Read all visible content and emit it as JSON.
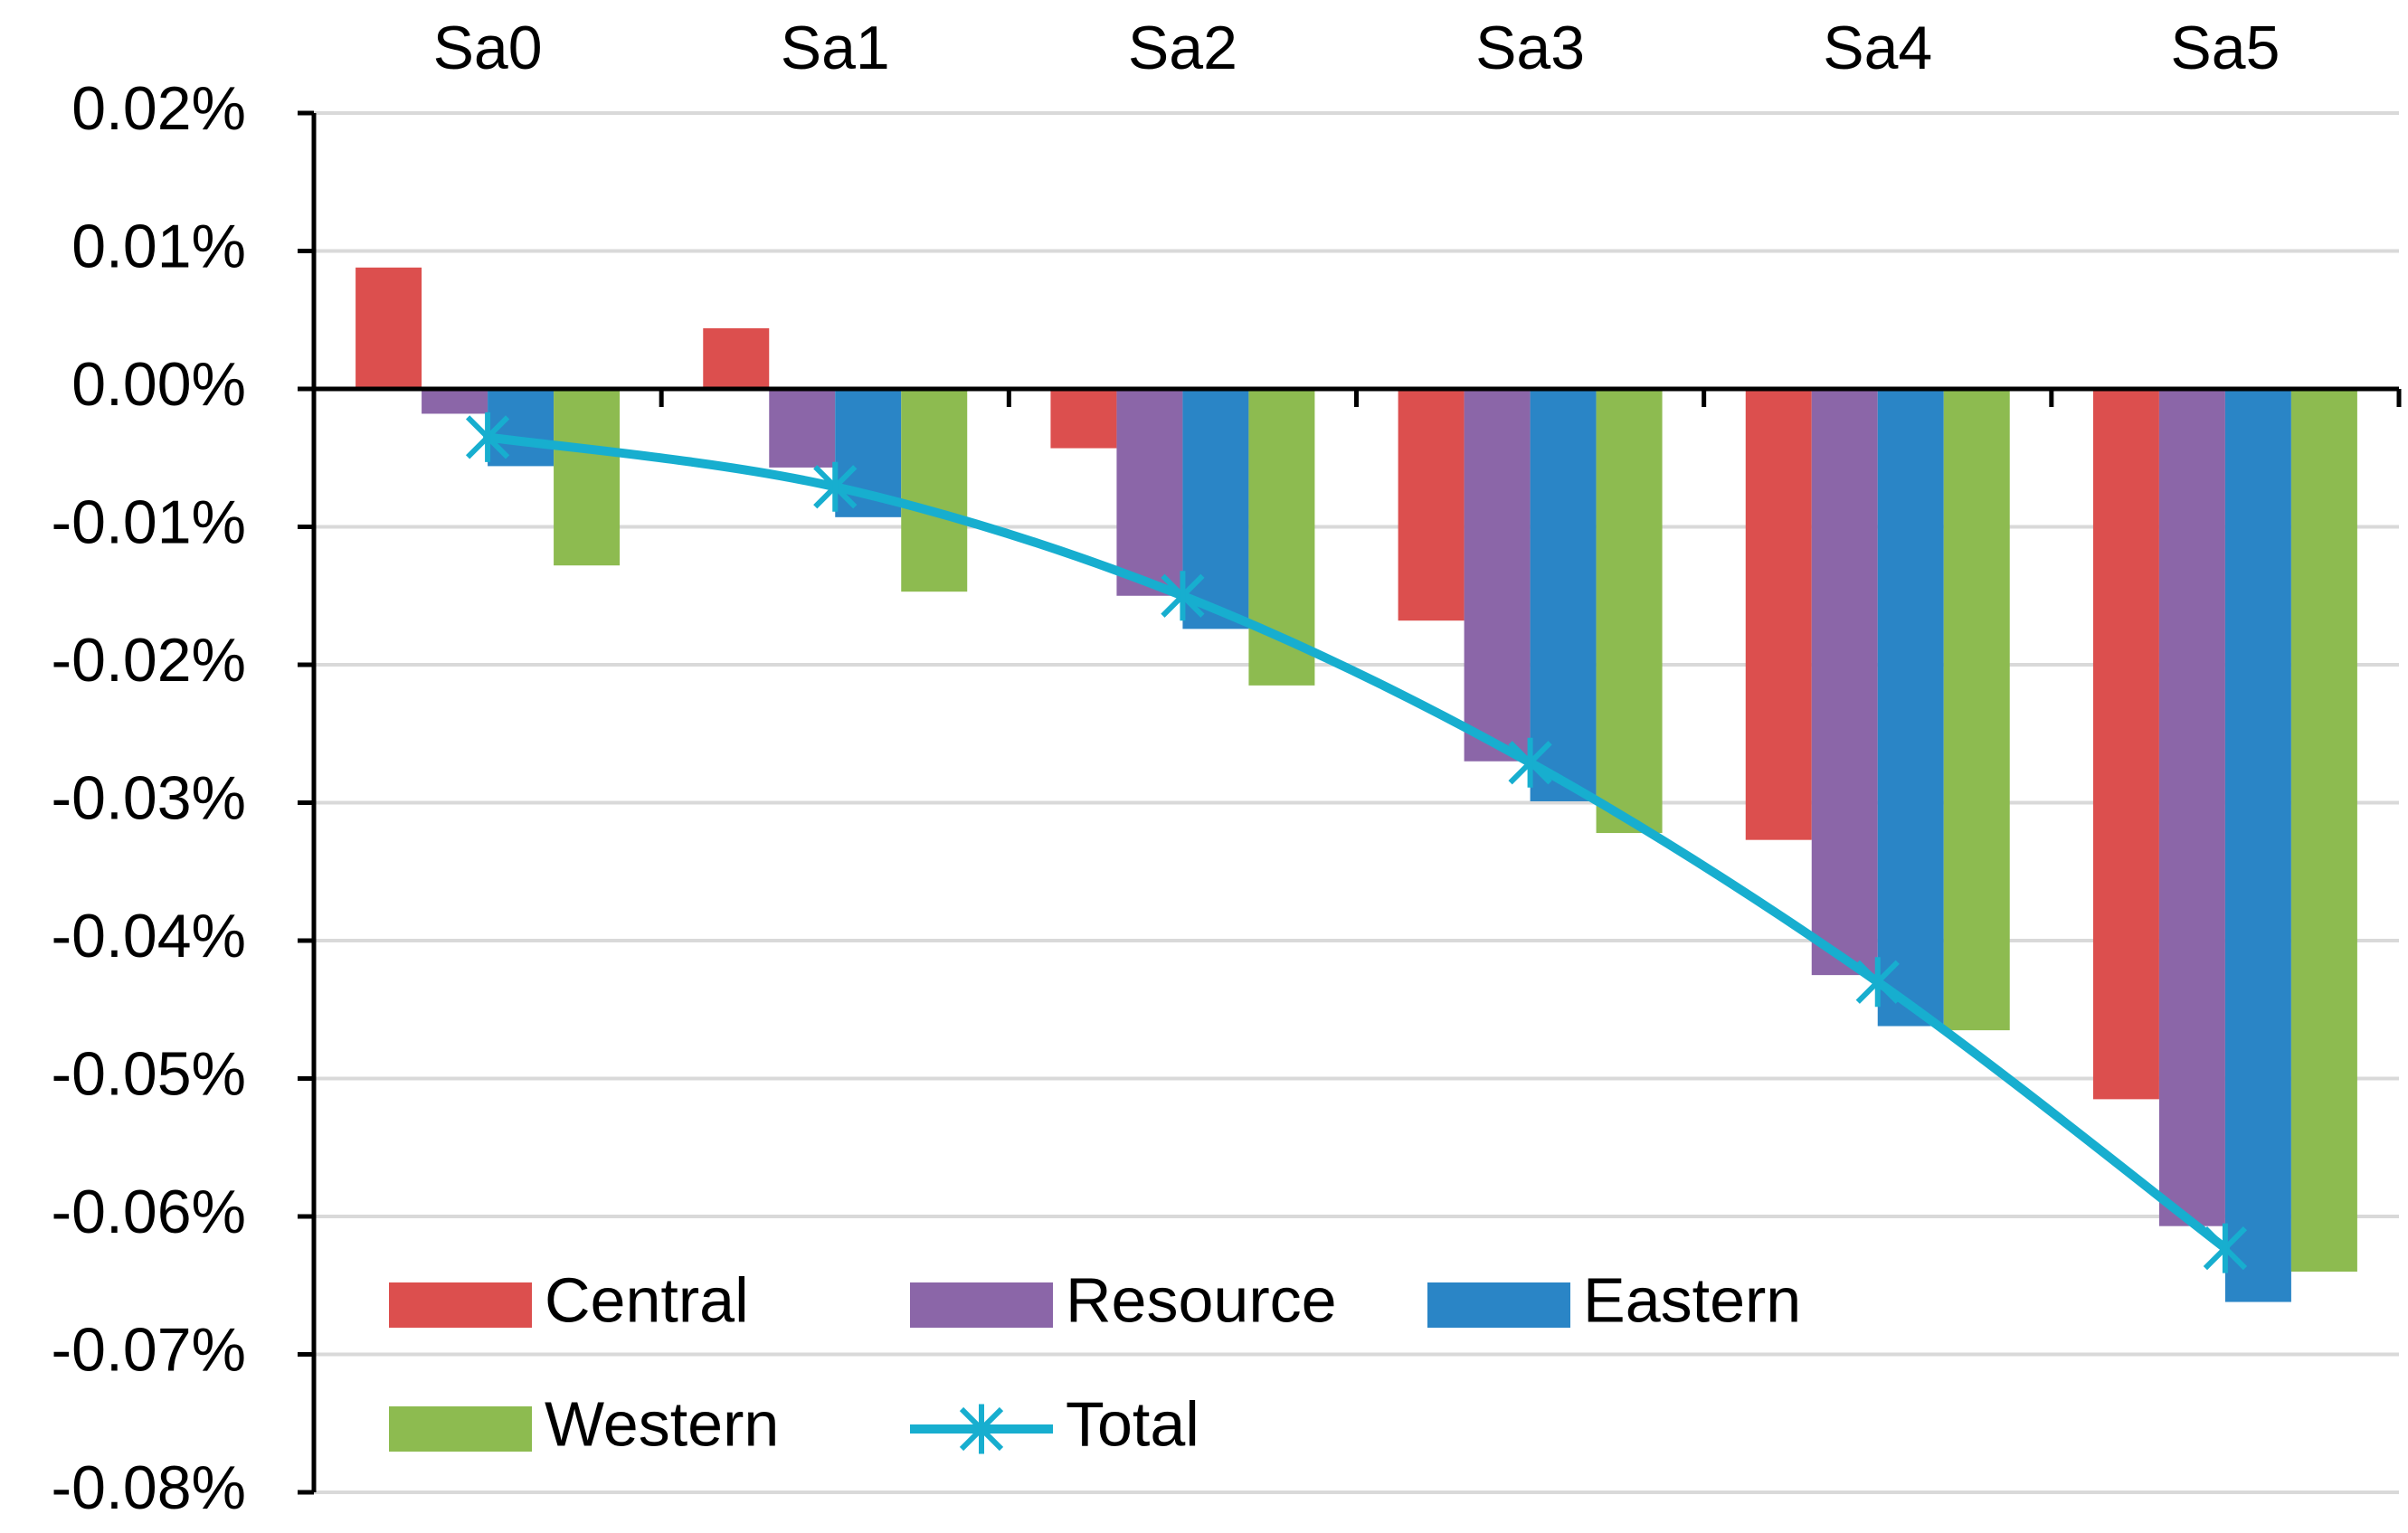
{
  "chart_data": {
    "type": "bar",
    "categories": [
      "Sa0",
      "Sa1",
      "Sa2",
      "Sa3",
      "Sa4",
      "Sa5"
    ],
    "series": [
      {
        "name": "Central",
        "color": "#DC4F4E",
        "values": [
          0.0088,
          0.0044,
          -0.0043,
          -0.0168,
          -0.0327,
          -0.0515
        ]
      },
      {
        "name": "Resource",
        "color": "#8B66A8",
        "values": [
          -0.0018,
          -0.0057,
          -0.015,
          -0.027,
          -0.0425,
          -0.0607
        ]
      },
      {
        "name": "Eastern",
        "color": "#2A85C6",
        "values": [
          -0.0056,
          -0.0093,
          -0.0174,
          -0.0299,
          -0.0462,
          -0.0662
        ]
      },
      {
        "name": "Western",
        "color": "#8DBB50",
        "values": [
          -0.0128,
          -0.0147,
          -0.0215,
          -0.0322,
          -0.0465,
          -0.064
        ]
      }
    ],
    "line_series": {
      "name": "Total",
      "color": "#17AECF",
      "marker": "asterisk",
      "values": [
        -0.0035,
        -0.0071,
        -0.015,
        -0.0271,
        -0.043,
        -0.0623
      ]
    },
    "y_ticks": [
      "0.02%",
      "0.01%",
      "0.00%",
      "-0.01%",
      "-0.02%",
      "-0.03%",
      "-0.04%",
      "-0.05%",
      "-0.06%",
      "-0.07%",
      "-0.08%"
    ],
    "ylim": [
      -0.08,
      0.02
    ],
    "y_unit": "%",
    "x_axis_position": "top (category labels above plot)",
    "grid": true,
    "legend_position": "bottom-left",
    "legend": [
      {
        "label": "Central",
        "type": "bar"
      },
      {
        "label": "Resource",
        "type": "bar"
      },
      {
        "label": "Eastern",
        "type": "bar"
      },
      {
        "label": "Western",
        "type": "bar"
      },
      {
        "label": "Total",
        "type": "line"
      }
    ],
    "title": "",
    "xlabel": "",
    "ylabel": ""
  }
}
